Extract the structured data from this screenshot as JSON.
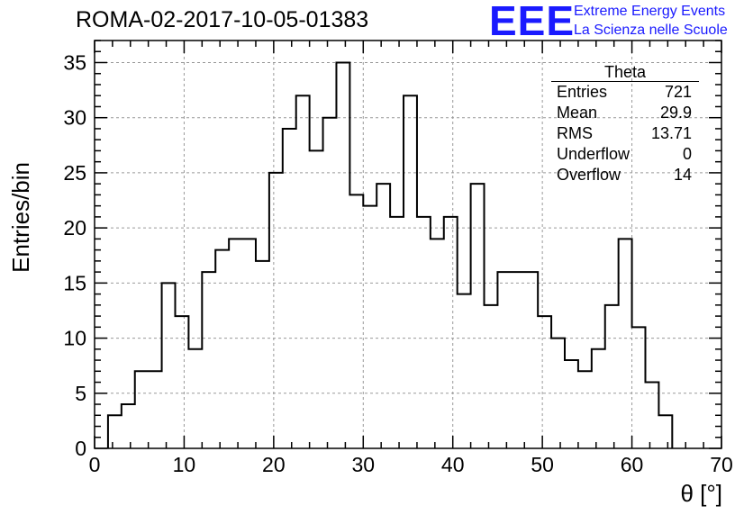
{
  "header": {
    "title": "ROMA-02-2017-10-05-01383",
    "logo_text": "EEE",
    "brand_line1": "Extreme Energy Events",
    "brand_line2": "La Scienza nelle Scuole"
  },
  "stats": {
    "title": "Theta",
    "rows": [
      {
        "label": "Entries",
        "value": "721"
      },
      {
        "label": "Mean",
        "value": "29.9"
      },
      {
        "label": "RMS",
        "value": "13.71"
      },
      {
        "label": "Underflow",
        "value": "0"
      },
      {
        "label": "Overflow",
        "value": "14"
      }
    ]
  },
  "chart_data": {
    "type": "histogram",
    "xlabel": "θ [°]",
    "ylabel": "Entries/bin",
    "xlim": [
      0,
      70
    ],
    "ylim": [
      0,
      37
    ],
    "x_ticks": [
      0,
      10,
      20,
      30,
      40,
      50,
      60,
      70
    ],
    "y_ticks": [
      0,
      5,
      10,
      15,
      20,
      25,
      30,
      35
    ],
    "grid": true,
    "bin_width": 1.5,
    "bin_edges_start": 1.5,
    "values": [
      3,
      4,
      7,
      7,
      15,
      12,
      9,
      16,
      18,
      19,
      19,
      17,
      25,
      29,
      32,
      27,
      30,
      35,
      23,
      22,
      24,
      21,
      32,
      21,
      19,
      21,
      14,
      24,
      13,
      16,
      16,
      16,
      12,
      10,
      8,
      7,
      9,
      13,
      19,
      11,
      6,
      3
    ],
    "line_color": "#000000"
  }
}
